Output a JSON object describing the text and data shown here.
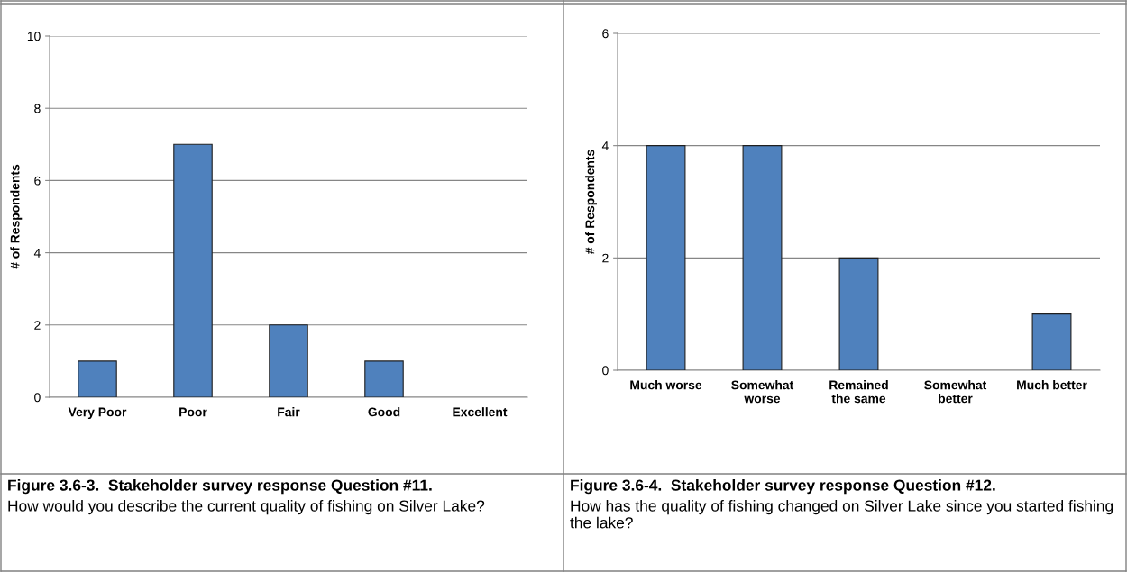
{
  "chart_data": [
    {
      "type": "bar",
      "ylabel": "# of Respondents",
      "categories": [
        "Very Poor",
        "Poor",
        "Fair",
        "Good",
        "Excellent"
      ],
      "values": [
        1,
        7,
        2,
        1,
        0
      ],
      "color": "#4f81bd",
      "ylim": [
        0,
        10
      ],
      "yticks": [
        0,
        2,
        4,
        6,
        8,
        10
      ],
      "grid": "y",
      "legend": false,
      "annotations": [
        "Figure 3.6-3.  Stakeholder survey response Question #11.",
        "How would you describe the current quality of fishing on Silver Lake?"
      ]
    },
    {
      "type": "bar",
      "ylabel": "# of Respondents",
      "categories": [
        "Much worse",
        "Somewhat worse",
        "Remained the same",
        "Somewhat better",
        "Much better"
      ],
      "values": [
        4,
        4,
        2,
        0,
        1
      ],
      "color": "#4f81bd",
      "ylim": [
        0,
        6
      ],
      "yticks": [
        0,
        2,
        4,
        6
      ],
      "grid": "y",
      "legend": false,
      "annotations": [
        "Figure 3.6-4.  Stakeholder survey response Question #12.",
        "How has the quality of fishing changed on Silver Lake since you started fishing the lake?"
      ]
    }
  ]
}
